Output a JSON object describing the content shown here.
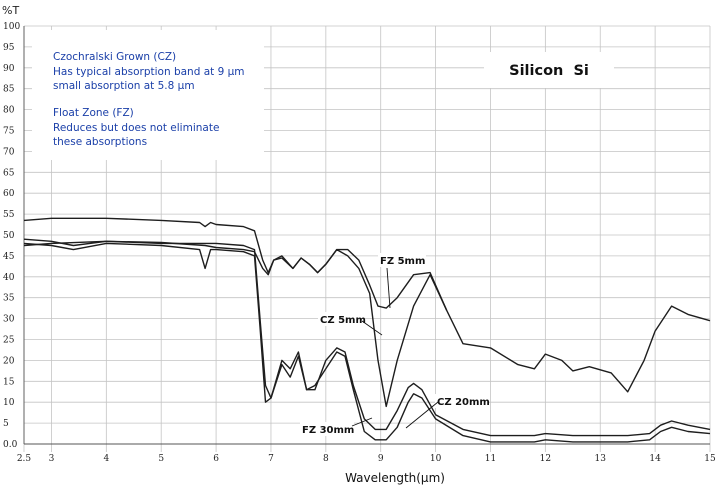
{
  "chart_data": {
    "type": "line",
    "title": "Silicon  Si",
    "ylabel": "%T",
    "xlabel": "Wavelength(µm)",
    "xlim": [
      2.5,
      15
    ],
    "ylim": [
      0,
      100
    ],
    "grid": true,
    "x_ticks": [
      "2.5",
      "3",
      "4",
      "5",
      "6",
      "7",
      "8",
      "9",
      "10",
      "11",
      "12",
      "13",
      "14",
      "15"
    ],
    "y_ticks": [
      "100",
      "95",
      "90",
      "85",
      "80",
      "75",
      "70",
      "65",
      "60",
      "55",
      "50",
      "45",
      "40",
      "35",
      "30",
      "25",
      "20",
      "15",
      "10",
      "5",
      "0.0"
    ],
    "notes": [
      "Czochralski Grown (CZ)",
      "Has typical absorption band at 9 µm",
      "small absorption at 5.8 µm",
      "Float Zone (FZ)",
      "Reduces but does not eliminate",
      "these absorptions"
    ],
    "annotations": [
      "FZ 5mm",
      "CZ 5mm",
      "CZ 20mm",
      "FZ 30mm"
    ],
    "series": [
      {
        "name": "FZ 5mm",
        "x": [
          2.5,
          3.0,
          4.0,
          5.0,
          5.8,
          6.0,
          6.5,
          6.7,
          6.85,
          6.95,
          7.05,
          7.2,
          7.4,
          7.55,
          7.7,
          7.85,
          8.0,
          8.2,
          8.4,
          8.6,
          8.8,
          8.95,
          9.1,
          9.3,
          9.6,
          9.9,
          10.2,
          10.5,
          11.0,
          11.5,
          11.8,
          12.0,
          12.3,
          12.5,
          12.8,
          13.2,
          13.5,
          13.8,
          14.0,
          14.3,
          14.6,
          15.0
        ],
        "y": [
          47.5,
          48.0,
          48.5,
          48.2,
          47.5,
          47.0,
          46.5,
          46.0,
          42.0,
          40.5,
          44.0,
          44.5,
          42.0,
          44.5,
          43.0,
          41.0,
          43.0,
          46.5,
          46.5,
          44.0,
          38.0,
          33.0,
          32.5,
          35.0,
          40.5,
          41.0,
          32.0,
          24.0,
          23.0,
          19.0,
          18.0,
          21.5,
          20.0,
          17.5,
          18.5,
          17.0,
          12.5,
          20.0,
          27.0,
          33.0,
          31.0,
          29.5
        ]
      },
      {
        "name": "CZ 5mm",
        "x": [
          2.5,
          3.0,
          4.0,
          5.0,
          5.7,
          5.8,
          5.9,
          6.0,
          6.5,
          6.7,
          6.85,
          6.95,
          7.05,
          7.2,
          7.4,
          7.55,
          7.7,
          7.85,
          8.0,
          8.2,
          8.4,
          8.6,
          8.8,
          8.95,
          9.1,
          9.3,
          9.6,
          9.9,
          10.2
        ],
        "y": [
          53.5,
          54.0,
          54.0,
          53.5,
          53.0,
          52.0,
          53.0,
          52.5,
          52.0,
          51.0,
          44.0,
          41.0,
          44.0,
          45.0,
          42.0,
          44.5,
          43.0,
          41.0,
          43.0,
          46.5,
          45.0,
          42.0,
          36.0,
          20.0,
          9.0,
          20.0,
          33.0,
          40.5,
          32.0
        ]
      },
      {
        "name": "CZ 20mm",
        "x": [
          2.5,
          3.0,
          3.4,
          4.0,
          5.0,
          6.0,
          6.5,
          6.7,
          6.8,
          6.9,
          7.0,
          7.2,
          7.35,
          7.5,
          7.65,
          7.8,
          8.0,
          8.2,
          8.35,
          8.5,
          8.7,
          8.9,
          9.1,
          9.3,
          9.5,
          9.6,
          9.75,
          10.0,
          10.5,
          11.0,
          11.8,
          12.0,
          12.5,
          13.0,
          13.5,
          13.9,
          14.1,
          14.3,
          14.6,
          15.0
        ],
        "y": [
          49.0,
          48.5,
          47.5,
          48.5,
          48.0,
          48.0,
          47.5,
          46.5,
          30.0,
          14.0,
          11.0,
          19.0,
          16.0,
          21.0,
          13.0,
          14.0,
          18.0,
          22.0,
          21.0,
          13.0,
          3.0,
          1.0,
          1.0,
          4.0,
          10.0,
          12.0,
          11.0,
          6.0,
          2.0,
          0.5,
          0.5,
          1.0,
          0.5,
          0.5,
          0.5,
          1.0,
          3.0,
          4.0,
          3.0,
          2.5
        ]
      },
      {
        "name": "FZ 30mm",
        "x": [
          2.5,
          3.0,
          3.4,
          4.0,
          5.0,
          5.7,
          5.8,
          5.9,
          6.0,
          6.5,
          6.7,
          6.8,
          6.9,
          7.0,
          7.2,
          7.35,
          7.5,
          7.65,
          7.8,
          8.0,
          8.2,
          8.35,
          8.5,
          8.7,
          8.9,
          9.1,
          9.3,
          9.5,
          9.6,
          9.75,
          10.0,
          10.5,
          11.0,
          11.8,
          12.0,
          12.5,
          13.0,
          13.5,
          13.9,
          14.1,
          14.3,
          14.6,
          15.0
        ],
        "y": [
          48.0,
          47.5,
          46.5,
          48.0,
          47.5,
          46.5,
          42.0,
          46.5,
          46.5,
          46.0,
          45.0,
          28.0,
          10.0,
          11.0,
          20.0,
          18.0,
          22.0,
          13.0,
          13.0,
          20.0,
          23.0,
          22.0,
          14.0,
          6.0,
          3.5,
          3.5,
          8.0,
          13.5,
          14.5,
          13.0,
          7.0,
          3.5,
          2.0,
          2.0,
          2.5,
          2.0,
          2.0,
          2.0,
          2.5,
          4.5,
          5.5,
          4.5,
          3.5
        ]
      }
    ]
  }
}
